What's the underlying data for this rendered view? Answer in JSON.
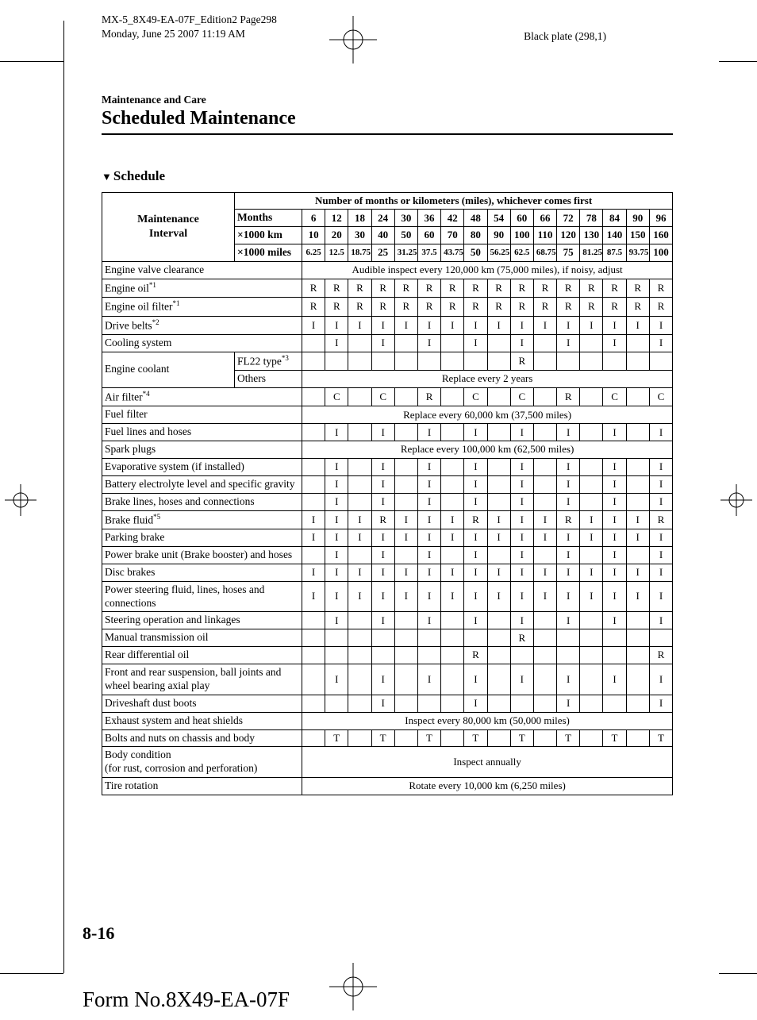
{
  "print_header_line1": "MX-5_8X49-EA-07F_Edition2 Page298",
  "print_header_line2": "Monday, June 25 2007 11:19 AM",
  "black_plate": "Black plate (298,1)",
  "breadcrumb": "Maintenance and Care",
  "section_title": "Scheduled Maintenance",
  "schedule_label": "Schedule",
  "page_number": "8-16",
  "form_no": "Form No.8X49-EA-07F",
  "table_header_span": "Number of months or kilometers (miles), whichever comes first",
  "interval_label": "Maintenance Interval",
  "interval_rows": [
    {
      "label": "Months",
      "vals": [
        "6",
        "12",
        "18",
        "24",
        "30",
        "36",
        "42",
        "48",
        "54",
        "60",
        "66",
        "72",
        "78",
        "84",
        "90",
        "96"
      ]
    },
    {
      "label": "×1000 km",
      "vals": [
        "10",
        "20",
        "30",
        "40",
        "50",
        "60",
        "70",
        "80",
        "90",
        "100",
        "110",
        "120",
        "130",
        "140",
        "150",
        "160"
      ]
    },
    {
      "label": "×1000 miles",
      "vals": [
        "6.25",
        "12.5",
        "18.75",
        "25",
        "31.25",
        "37.5",
        "43.75",
        "50",
        "56.25",
        "62.5",
        "68.75",
        "75",
        "81.25",
        "87.5",
        "93.75",
        "100"
      ]
    }
  ],
  "rows": [
    {
      "type": "span",
      "label": "Engine valve clearance",
      "span_text": "Audible inspect every 120,000 km (75,000 miles), if noisy, adjust"
    },
    {
      "type": "cells",
      "label": "Engine oil",
      "sup": "*1",
      "cells": [
        "R",
        "R",
        "R",
        "R",
        "R",
        "R",
        "R",
        "R",
        "R",
        "R",
        "R",
        "R",
        "R",
        "R",
        "R",
        "R"
      ]
    },
    {
      "type": "cells",
      "label": "Engine oil filter",
      "sup": "*1",
      "cells": [
        "R",
        "R",
        "R",
        "R",
        "R",
        "R",
        "R",
        "R",
        "R",
        "R",
        "R",
        "R",
        "R",
        "R",
        "R",
        "R"
      ]
    },
    {
      "type": "cells",
      "label": "Drive belts",
      "sup": "*2",
      "cells": [
        "I",
        "I",
        "I",
        "I",
        "I",
        "I",
        "I",
        "I",
        "I",
        "I",
        "I",
        "I",
        "I",
        "I",
        "I",
        "I"
      ]
    },
    {
      "type": "cells",
      "label": "Cooling system",
      "cells": [
        "",
        "I",
        "",
        "I",
        "",
        "I",
        "",
        "I",
        "",
        "I",
        "",
        "I",
        "",
        "I",
        "",
        "I"
      ]
    },
    {
      "type": "coolant",
      "label": "Engine coolant",
      "sub1": "FL22 type",
      "sub1_sup": "*3",
      "sub1_cells": [
        "",
        "",
        "",
        "",
        "",
        "",
        "",
        "",
        "",
        "R",
        "",
        "",
        "",
        "",
        "",
        ""
      ],
      "sub2": "Others",
      "sub2_span": "Replace every 2 years"
    },
    {
      "type": "cells",
      "label": "Air filter",
      "sup": "*4",
      "cells": [
        "",
        "C",
        "",
        "C",
        "",
        "R",
        "",
        "C",
        "",
        "C",
        "",
        "R",
        "",
        "C",
        "",
        "C"
      ]
    },
    {
      "type": "span",
      "label": "Fuel filter",
      "span_text": "Replace every 60,000 km (37,500 miles)"
    },
    {
      "type": "cells",
      "label": "Fuel lines and hoses",
      "cells": [
        "",
        "I",
        "",
        "I",
        "",
        "I",
        "",
        "I",
        "",
        "I",
        "",
        "I",
        "",
        "I",
        "",
        "I"
      ]
    },
    {
      "type": "span",
      "label": "Spark plugs",
      "span_text": "Replace every 100,000 km (62,500 miles)"
    },
    {
      "type": "cells",
      "label": "Evaporative system (if installed)",
      "cells": [
        "",
        "I",
        "",
        "I",
        "",
        "I",
        "",
        "I",
        "",
        "I",
        "",
        "I",
        "",
        "I",
        "",
        "I"
      ]
    },
    {
      "type": "cells",
      "label": "Battery electrolyte level and specific gravity",
      "cells": [
        "",
        "I",
        "",
        "I",
        "",
        "I",
        "",
        "I",
        "",
        "I",
        "",
        "I",
        "",
        "I",
        "",
        "I"
      ]
    },
    {
      "type": "cells",
      "label": "Brake lines, hoses and connections",
      "cells": [
        "",
        "I",
        "",
        "I",
        "",
        "I",
        "",
        "I",
        "",
        "I",
        "",
        "I",
        "",
        "I",
        "",
        "I"
      ]
    },
    {
      "type": "cells",
      "label": "Brake fluid",
      "sup": "*5",
      "cells": [
        "I",
        "I",
        "I",
        "R",
        "I",
        "I",
        "I",
        "R",
        "I",
        "I",
        "I",
        "R",
        "I",
        "I",
        "I",
        "R"
      ]
    },
    {
      "type": "cells",
      "label": "Parking brake",
      "cells": [
        "I",
        "I",
        "I",
        "I",
        "I",
        "I",
        "I",
        "I",
        "I",
        "I",
        "I",
        "I",
        "I",
        "I",
        "I",
        "I"
      ]
    },
    {
      "type": "cells",
      "label": "Power brake unit (Brake booster) and hoses",
      "cells": [
        "",
        "I",
        "",
        "I",
        "",
        "I",
        "",
        "I",
        "",
        "I",
        "",
        "I",
        "",
        "I",
        "",
        "I"
      ]
    },
    {
      "type": "cells",
      "label": "Disc brakes",
      "cells": [
        "I",
        "I",
        "I",
        "I",
        "I",
        "I",
        "I",
        "I",
        "I",
        "I",
        "I",
        "I",
        "I",
        "I",
        "I",
        "I"
      ]
    },
    {
      "type": "cells",
      "label": "Power steering fluid, lines, hoses and connections",
      "cells": [
        "I",
        "I",
        "I",
        "I",
        "I",
        "I",
        "I",
        "I",
        "I",
        "I",
        "I",
        "I",
        "I",
        "I",
        "I",
        "I"
      ]
    },
    {
      "type": "cells",
      "label": "Steering operation and linkages",
      "cells": [
        "",
        "I",
        "",
        "I",
        "",
        "I",
        "",
        "I",
        "",
        "I",
        "",
        "I",
        "",
        "I",
        "",
        "I"
      ]
    },
    {
      "type": "cells",
      "label": "Manual transmission oil",
      "cells": [
        "",
        "",
        "",
        "",
        "",
        "",
        "",
        "",
        "",
        "R",
        "",
        "",
        "",
        "",
        "",
        ""
      ]
    },
    {
      "type": "cells",
      "label": "Rear differential oil",
      "cells": [
        "",
        "",
        "",
        "",
        "",
        "",
        "",
        "R",
        "",
        "",
        "",
        "",
        "",
        "",
        "",
        "R"
      ]
    },
    {
      "type": "cells",
      "label": "Front and rear suspension, ball joints and wheel bearing axial play",
      "cells": [
        "",
        "I",
        "",
        "I",
        "",
        "I",
        "",
        "I",
        "",
        "I",
        "",
        "I",
        "",
        "I",
        "",
        "I"
      ]
    },
    {
      "type": "cells",
      "label": "Driveshaft dust boots",
      "cells": [
        "",
        "",
        "",
        "I",
        "",
        "",
        "",
        "I",
        "",
        "",
        "",
        "I",
        "",
        "",
        "",
        "I"
      ]
    },
    {
      "type": "span",
      "label": "Exhaust system and heat shields",
      "span_text": "Inspect every 80,000 km (50,000 miles)"
    },
    {
      "type": "cells",
      "label": "Bolts and nuts on chassis and body",
      "cells": [
        "",
        "T",
        "",
        "T",
        "",
        "T",
        "",
        "T",
        "",
        "T",
        "",
        "T",
        "",
        "T",
        "",
        "T"
      ]
    },
    {
      "type": "span",
      "label": "Body condition\n(for rust, corrosion and perforation)",
      "span_text": "Inspect annually"
    },
    {
      "type": "span",
      "label": "Tire rotation",
      "span_text": "Rotate every 10,000 km (6,250 miles)"
    }
  ]
}
